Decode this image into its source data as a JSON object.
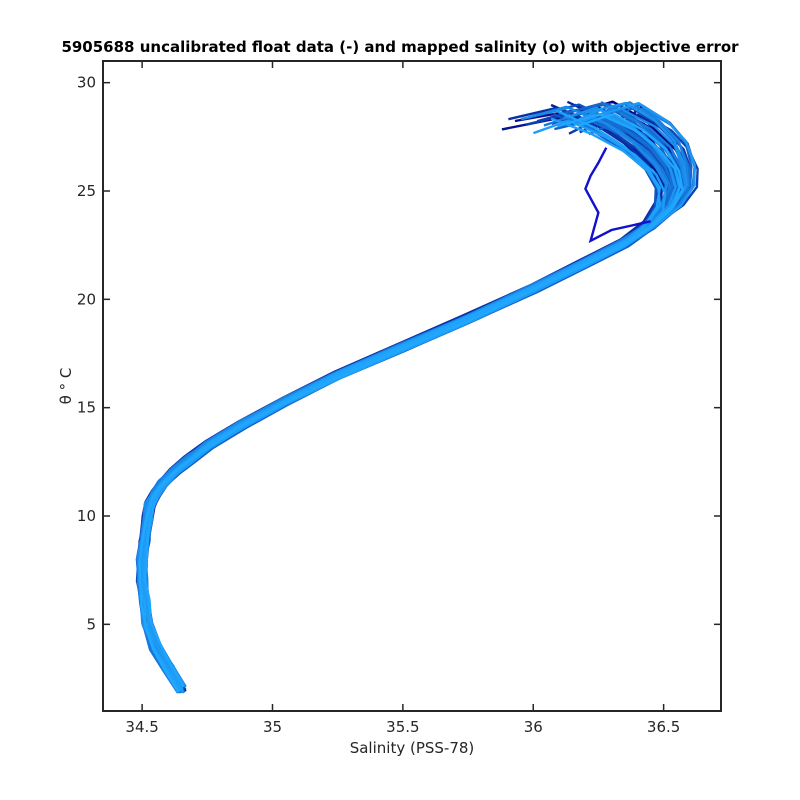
{
  "chart_data": {
    "type": "line",
    "title": "5905688 uncalibrated float data (-) and mapped salinity (o) with objective error",
    "xlabel": "Salinity (PSS-78)",
    "ylabel": "θ ° C",
    "xlim": [
      34.35,
      36.72
    ],
    "ylim": [
      1.0,
      31.0
    ],
    "x_ticks": [
      34.5,
      35,
      35.5,
      36,
      36.5
    ],
    "x_tick_labels": [
      "34.5",
      "35",
      "35.5",
      "36",
      "36.5"
    ],
    "y_ticks": [
      5,
      10,
      15,
      20,
      25,
      30
    ],
    "y_tick_labels": [
      "5",
      "10",
      "15",
      "20",
      "25",
      "30"
    ],
    "grid": false,
    "color_start": "#000080",
    "color_end": "#20a8ff",
    "profile_count": 60,
    "mean_profile": {
      "salinity": [
        34.65,
        34.6,
        34.55,
        34.52,
        34.51,
        34.5,
        34.5,
        34.51,
        34.52,
        34.53,
        34.55,
        34.58,
        34.62,
        34.68,
        34.76,
        34.88,
        35.05,
        35.25,
        35.5,
        35.75,
        36.0,
        36.2,
        36.35,
        36.45,
        36.52,
        36.55,
        36.53,
        36.47,
        36.38,
        36.25
      ],
      "theta": [
        2.0,
        3.0,
        4.0,
        5.0,
        6.0,
        7.0,
        8.0,
        9.0,
        9.8,
        10.5,
        11.0,
        11.5,
        12.0,
        12.6,
        13.3,
        14.2,
        15.3,
        16.5,
        17.8,
        19.1,
        20.5,
        21.7,
        22.6,
        23.4,
        24.2,
        25.0,
        25.8,
        26.7,
        27.5,
        28.2
      ]
    },
    "stray_profile": {
      "salinity": [
        36.45,
        36.3,
        36.22,
        36.25,
        36.2,
        36.22,
        36.25,
        36.28
      ],
      "theta": [
        23.6,
        23.2,
        22.7,
        24.0,
        25.1,
        25.7,
        26.3,
        27.0
      ]
    }
  }
}
